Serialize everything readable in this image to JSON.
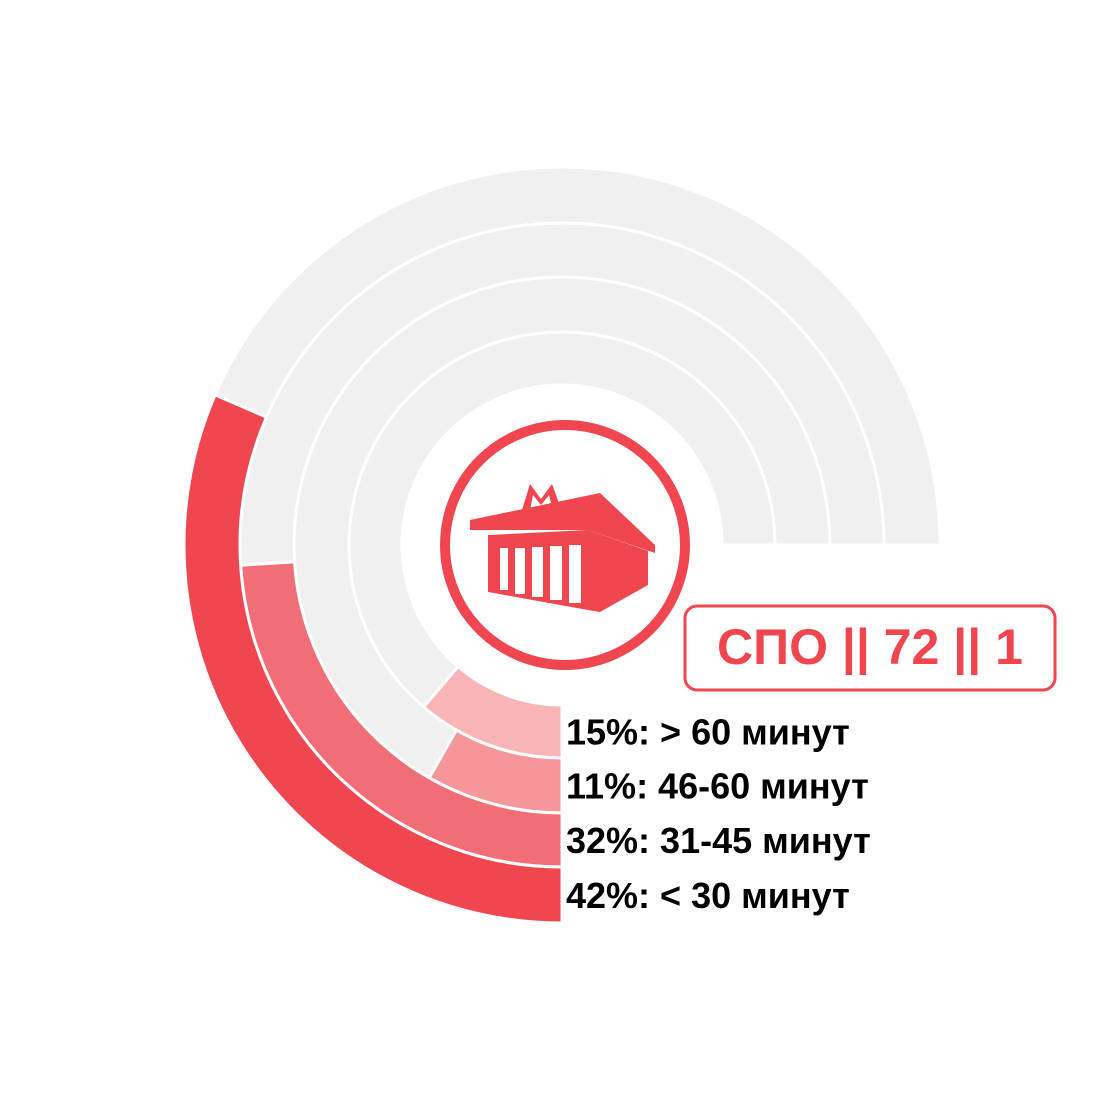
{
  "chart_data": {
    "type": "radial-bar",
    "title": "СПО || 72 || 1",
    "icon": "metro-station-icon",
    "series": [
      {
        "label": "15%: > 60 минут",
        "value": 15,
        "color": "#F8B4B7"
      },
      {
        "label": "11%: 46-60 минут",
        "value": 11,
        "color": "#F5969B"
      },
      {
        "label": "32%: 31-45 минут",
        "value": 32,
        "color": "#F26E76"
      },
      {
        "label": "42%: < 30 минут",
        "value": 42,
        "color": "#F04650"
      }
    ],
    "max_value": 100,
    "track_color": "#F0F0F0",
    "accent_color": "#F04650"
  }
}
